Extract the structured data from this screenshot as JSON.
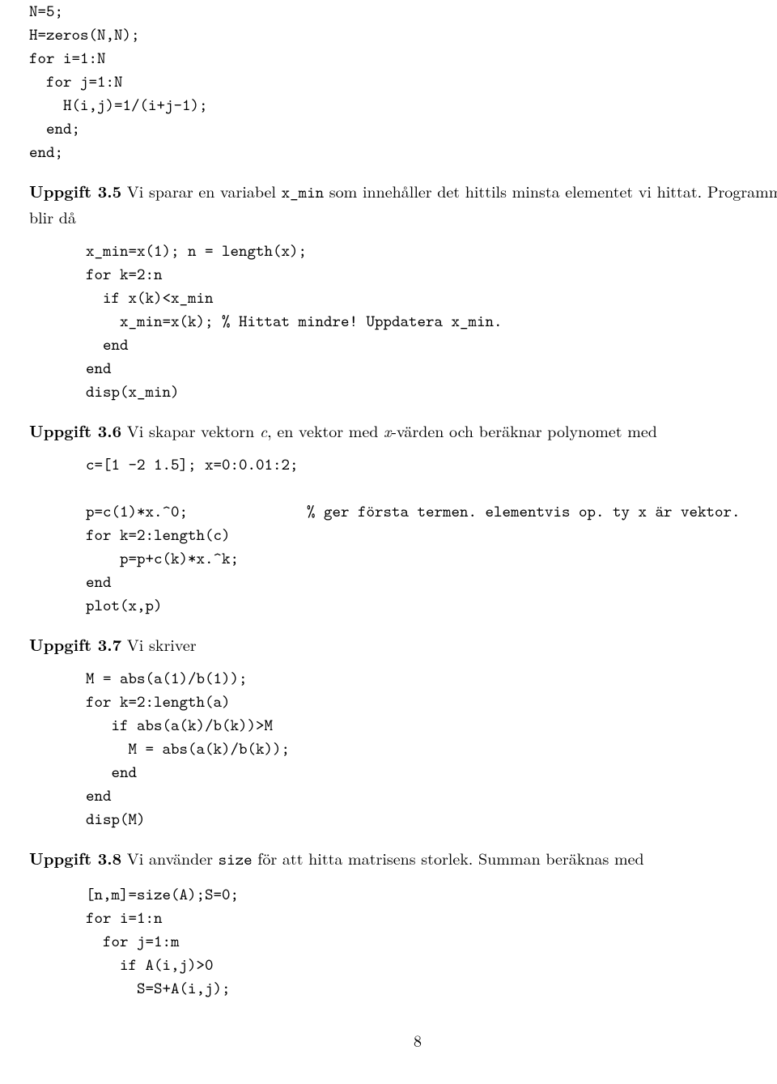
{
  "code_top": "N=5;\nH=zeros(N,N);\nfor i=1:N\n  for j=1:N\n    H(i,j)=1/(i+j-1);\n  end;\nend;",
  "u35": {
    "label": "Uppgift 3.5",
    "text_a": " Vi sparar en variabel ",
    "var": "x_min",
    "text_b": " som innehåller det hittils minsta elementet vi hittat. Programmet blir då"
  },
  "code_35": "x_min=x(1); n = length(x);\nfor k=2:n\n  if x(k)<x_min\n    x_min=x(k); % Hittat mindre! Uppdatera x_min.\n  end\nend\ndisp(x_min)",
  "u36": {
    "label": "Uppgift 3.6",
    "text_a": " Vi skapar vektorn ",
    "c": "c",
    "text_b": ", en vektor med ",
    "x": "x",
    "text_c": "-värden och beräknar polynomet med"
  },
  "code_36": "c=[1 -2 1.5]; x=0:0.01:2;\n\np=c(1)*x.^0;              % ger första termen. elementvis op. ty x är vektor.\nfor k=2:length(c)\n    p=p+c(k)*x.^k;\nend\nplot(x,p)",
  "u37": {
    "label": "Uppgift 3.7",
    "text": " Vi skriver"
  },
  "code_37": "M = abs(a(1)/b(1));\nfor k=2:length(a)\n   if abs(a(k)/b(k))>M\n     M = abs(a(k)/b(k));\n   end\nend\ndisp(M)",
  "u38": {
    "label": "Uppgift 3.8",
    "text_a": " Vi använder ",
    "size": "size",
    "text_b": " för att hitta matrisens storlek. Summan beräknas med"
  },
  "code_38": "[n,m]=size(A);S=0;\nfor i=1:n\n  for j=1:m\n    if A(i,j)>0\n      S=S+A(i,j);",
  "pagenum": "8"
}
